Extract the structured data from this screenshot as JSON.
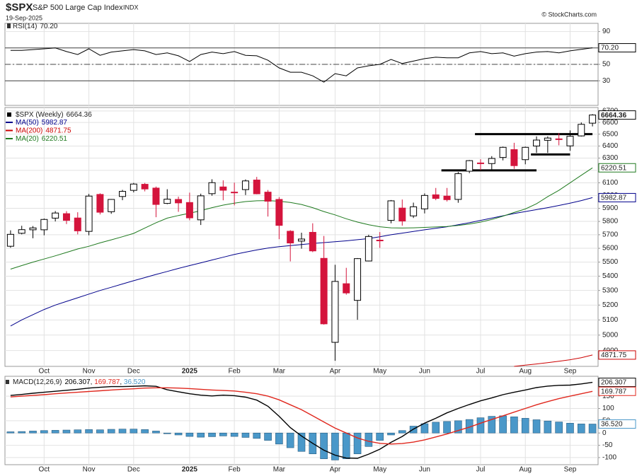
{
  "header": {
    "symbol": "$SPX",
    "name": "S&P 500 Large Cap Index",
    "exchange": "INDX",
    "date": "19-Sep-2025",
    "source": "© StockCharts.com"
  },
  "chart_data": [
    {
      "type": "line",
      "legend": "RSI(14)",
      "ylim": [
        0,
        100
      ],
      "yticks": [
        90,
        70,
        50,
        30
      ],
      "grid": true,
      "levels": [
        {
          "value": 70,
          "style": "solid"
        },
        {
          "value": 50,
          "style": "dashdot"
        },
        {
          "value": 30,
          "style": "solid"
        }
      ],
      "series": [
        {
          "color": "#000000",
          "values": [
            67,
            67,
            68,
            69,
            70,
            65.6,
            62,
            69,
            61,
            65,
            66.5,
            68,
            66.5,
            62,
            64,
            60.4,
            53.5,
            62,
            65,
            63,
            65.6,
            61,
            60.4,
            55,
            45.7,
            40.4,
            40.4,
            36,
            28.3,
            38.7,
            36,
            45.7,
            48.3,
            50,
            56,
            51,
            54,
            57,
            58.7,
            58,
            58,
            64,
            65.6,
            63,
            64,
            60,
            63,
            65,
            65.6,
            64,
            66.5,
            68.3,
            70.2
          ],
          "value_labels": {
            "52": "70.20"
          }
        }
      ]
    },
    {
      "type": "candlestick",
      "legend": "$SPX (Weekly)",
      "log_scale": true,
      "ylim": [
        4800,
        6730
      ],
      "yticks": [
        6700,
        6600,
        6500,
        6400,
        6300,
        6200,
        6100,
        6000,
        5900,
        5800,
        5700,
        5600,
        5500,
        5400,
        5300,
        5200,
        5100,
        5000,
        4900
      ],
      "grid": true,
      "up_color": "#000000",
      "down_color": "#d4143c",
      "categories": [
        null,
        null,
        null,
        "Oct",
        null,
        null,
        null,
        "Nov",
        null,
        null,
        null,
        "Dec",
        null,
        null,
        null,
        null,
        "2025",
        null,
        null,
        null,
        "Feb",
        null,
        null,
        null,
        "Mar",
        null,
        null,
        null,
        null,
        "Apr",
        null,
        null,
        null,
        "May",
        null,
        null,
        null,
        "Jun",
        null,
        null,
        null,
        null,
        "Jul",
        null,
        null,
        null,
        "Aug",
        null,
        null,
        null,
        "Sep",
        null,
        null
      ],
      "open": [
        5615,
        5711,
        5737,
        5737,
        5825,
        5859,
        5826,
        5725,
        6008,
        5874,
        5992,
        6040,
        6088,
        6058,
        5938,
        5969,
        5945,
        5812,
        6014,
        6067,
        6021,
        6046,
        6122,
        6026,
        5969,
        5726,
        5653,
        5718,
        5527,
        4953,
        5347,
        5232,
        5508,
        5655,
        5808,
        5902,
        5842,
        5896,
        6005,
        5995,
        5969,
        6193,
        6260,
        6255,
        6305,
        6370,
        6287,
        6400,
        6448,
        6457,
        6401,
        6485,
        6594
      ],
      "high": [
        5733,
        5767,
        5765,
        5822,
        5879,
        5878,
        5870,
        6012,
        6017,
        5972,
        6044,
        6099,
        6099,
        6070,
        6049,
        5991,
        6022,
        6014,
        6128,
        6120,
        6101,
        6127,
        6147,
        6043,
        5987,
        5734,
        5715,
        5786,
        5691,
        5481,
        5459,
        5529,
        5700,
        5720,
        5964,
        5968,
        5944,
        6016,
        6059,
        6059,
        6187,
        6284,
        6291,
        6316,
        6395,
        6427,
        6395,
        6481,
        6481,
        6508,
        6532,
        6600,
        6672
      ],
      "low": [
        5604,
        5703,
        5674,
        5696,
        5800,
        5780,
        5703,
        5696,
        5853,
        5858,
        5963,
        6024,
        6032,
        5832,
        5932,
        5873,
        5809,
        5773,
        5998,
        5962,
        5923,
        6003,
        6009,
        5837,
        5667,
        5505,
        5597,
        5572,
        5069,
        4835,
        5271,
        5101,
        5505,
        5603,
        5786,
        5768,
        5826,
        5861,
        5963,
        5953,
        5943,
        6177,
        6201,
        6201,
        6281,
        6212,
        6249,
        6343,
        6343,
        6406,
        6360,
        6480,
        6566
      ],
      "close": [
        5703,
        5738,
        5751,
        5815,
        5864,
        5808,
        5729,
        5995,
        5870,
        5969,
        6032,
        6090,
        6051,
        5930,
        5971,
        5942,
        5827,
        5997,
        6101,
        6041,
        6026,
        6115,
        6013,
        5955,
        5770,
        5639,
        5668,
        5581,
        5074,
        5363,
        5283,
        5525,
        5687,
        5660,
        5958,
        5803,
        5912,
        6000,
        5977,
        5967,
        6173,
        6279,
        6260,
        6297,
        6389,
        6238,
        6389,
        6450,
        6467,
        6460,
        6482,
        6584,
        6664.36
      ],
      "overlays": [
        {
          "name": "MA(50)",
          "color": "#00008b",
          "values": [
            5060,
            5100,
            5135,
            5170,
            5200,
            5225,
            5250,
            5275,
            5300,
            5322,
            5345,
            5368,
            5390,
            5412,
            5433,
            5455,
            5475,
            5495,
            5515,
            5535,
            5555,
            5572,
            5588,
            5602,
            5612,
            5620,
            5628,
            5635,
            5642,
            5648,
            5655,
            5663,
            5672,
            5685,
            5700,
            5712,
            5725,
            5737,
            5748,
            5760,
            5775,
            5790,
            5808,
            5825,
            5843,
            5860,
            5875,
            5890,
            5905,
            5922,
            5940,
            5960,
            5982.87
          ]
        },
        {
          "name": "MA(200)",
          "color": "#cc0000",
          "values": [
            null,
            null,
            null,
            null,
            null,
            null,
            null,
            null,
            null,
            null,
            null,
            null,
            null,
            null,
            null,
            null,
            null,
            null,
            null,
            null,
            null,
            null,
            null,
            null,
            null,
            null,
            null,
            null,
            null,
            null,
            null,
            null,
            null,
            null,
            null,
            null,
            null,
            null,
            null,
            null,
            null,
            null,
            null,
            null,
            null,
            4800,
            4808,
            4815,
            4823,
            4832,
            4842,
            4855,
            4871.75
          ]
        },
        {
          "name": "MA(20)",
          "color": "#1f7a1f",
          "values": [
            5450,
            5475,
            5500,
            5522,
            5545,
            5570,
            5595,
            5615,
            5640,
            5662,
            5685,
            5710,
            5750,
            5790,
            5825,
            5845,
            5862,
            5882,
            5905,
            5925,
            5940,
            5952,
            5958,
            5960,
            5955,
            5945,
            5930,
            5905,
            5875,
            5850,
            5820,
            5795,
            5775,
            5760,
            5752,
            5750,
            5752,
            5755,
            5758,
            5762,
            5770,
            5780,
            5795,
            5815,
            5840,
            5868,
            5895,
            5935,
            5990,
            6040,
            6100,
            6160,
            6220.51
          ]
        }
      ],
      "lines": [
        {
          "value": 6500,
          "start": 42,
          "end": 52
        },
        {
          "value": 6200,
          "start": 39,
          "end": 47
        },
        {
          "value": 6330,
          "start": 47,
          "end": 50
        }
      ]
    },
    {
      "type": "macd",
      "legend": "MACD(12,26,9)",
      "legend_separator": ", ",
      "ylim": [
        -129,
        231
      ],
      "yticks": [
        150,
        100,
        50,
        0,
        -50,
        -100
      ],
      "grid": true,
      "categories": [
        null,
        null,
        null,
        "Oct",
        null,
        null,
        null,
        "Nov",
        null,
        null,
        null,
        "Dec",
        null,
        null,
        null,
        null,
        "2025",
        null,
        null,
        null,
        "Feb",
        null,
        null,
        null,
        "Mar",
        null,
        null,
        null,
        null,
        "Apr",
        null,
        null,
        null,
        "May",
        null,
        null,
        null,
        "Jun",
        null,
        null,
        null,
        null,
        "Jul",
        null,
        null,
        null,
        "Aug",
        null,
        null,
        null,
        "Sep",
        null,
        null
      ],
      "series": [
        {
          "kind": "line",
          "color": "#000000",
          "values": [
            153,
            157,
            162,
            166,
            170,
            174,
            178,
            183,
            186,
            189,
            189,
            190,
            192,
            190,
            176,
            168,
            160,
            154,
            151,
            154,
            152,
            146,
            134,
            109,
            68,
            22,
            -12,
            -42,
            -70,
            -90,
            -102,
            -103,
            -86,
            -66,
            -38,
            -14,
            16,
            40,
            60,
            82,
            100,
            116,
            131,
            143,
            156,
            166,
            175,
            185,
            191,
            194,
            195,
            200,
            206.307
          ]
        },
        {
          "kind": "line",
          "color": "#e0281e",
          "values": [
            147,
            150,
            153,
            156,
            160,
            163,
            166,
            169,
            172,
            175,
            178,
            180,
            183,
            184,
            184,
            183,
            181,
            178,
            175,
            173,
            171,
            166,
            160,
            150,
            135,
            115,
            95,
            70,
            45,
            20,
            0,
            -20,
            -34,
            -42,
            -45,
            -43,
            -37,
            -28,
            -16,
            -4,
            10,
            24,
            40,
            55,
            70,
            85,
            100,
            115,
            128,
            140,
            150,
            160,
            169.787
          ]
        },
        {
          "kind": "bar",
          "color": "#4a98c9",
          "values": [
            5,
            6,
            8,
            10,
            11,
            12,
            13,
            14,
            13,
            15,
            16,
            16,
            14,
            8,
            -3,
            -8,
            -14,
            -17,
            -15,
            -12,
            -14,
            -18,
            -22,
            -30,
            -45,
            -60,
            -75,
            -85,
            -105,
            -110,
            -105,
            -85,
            -55,
            -30,
            -8,
            10,
            28,
            38,
            44,
            47,
            50,
            55,
            62,
            68,
            70,
            66,
            60,
            54,
            49,
            45,
            40,
            37,
            36.52
          ],
          "value_labels": {
            "52": "36.520"
          }
        }
      ]
    }
  ]
}
